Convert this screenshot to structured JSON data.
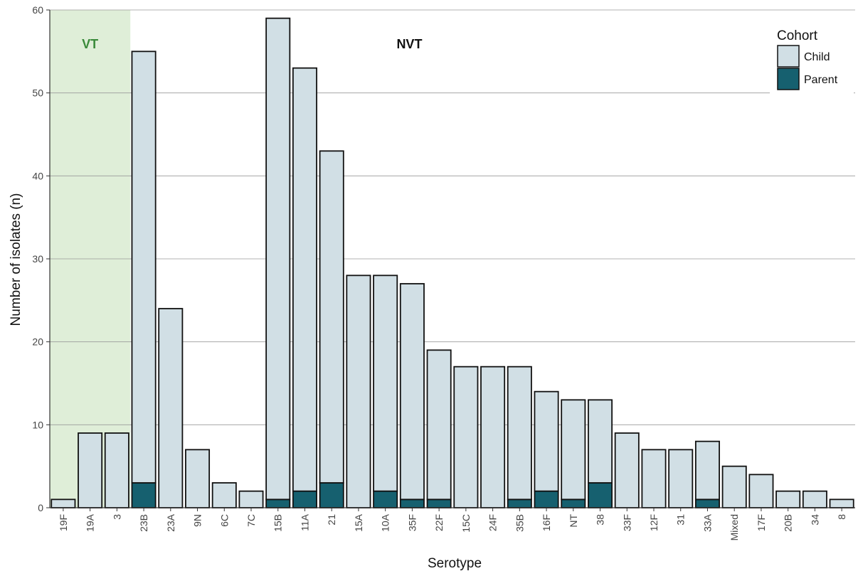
{
  "chart_data": {
    "type": "bar",
    "stacked": true,
    "xlabel": "Serotype",
    "ylabel": "Number of isolates (n)",
    "ylim": [
      0,
      60
    ],
    "yticks": [
      0,
      10,
      20,
      30,
      40,
      50,
      60
    ],
    "grid": "horizontal",
    "categories": [
      "19F",
      "19A",
      "3",
      "23B",
      "23A",
      "9N",
      "6C",
      "7C",
      "15B",
      "11A",
      "21",
      "15A",
      "10A",
      "35F",
      "22F",
      "15C",
      "24F",
      "35B",
      "16F",
      "NT",
      "38",
      "33F",
      "12F",
      "31",
      "33A",
      "Mixed",
      "17F",
      "20B",
      "34",
      "8"
    ],
    "series": [
      {
        "name": "Parent",
        "color": "#16606f",
        "values": [
          0,
          0,
          0,
          3,
          0,
          0,
          0,
          0,
          1,
          2,
          3,
          0,
          2,
          1,
          1,
          0,
          0,
          1,
          2,
          1,
          3,
          0,
          0,
          0,
          1,
          0,
          0,
          0,
          0,
          0
        ]
      },
      {
        "name": "Child",
        "color": "#d1dfe5",
        "values": [
          1,
          9,
          9,
          52,
          24,
          7,
          3,
          2,
          58,
          51,
          40,
          28,
          26,
          26,
          18,
          17,
          17,
          16,
          12,
          12,
          10,
          9,
          7,
          7,
          7,
          5,
          4,
          2,
          2,
          1
        ]
      }
    ],
    "regions": [
      {
        "label": "VT",
        "from": "19F",
        "to": "3",
        "fill": "#dfeed8",
        "text_color": "#3a8a3a"
      },
      {
        "label": "NVT",
        "from": "23B",
        "to": "8",
        "fill": "none",
        "text_color": "#111111"
      }
    ],
    "legend": {
      "title": "Cohort",
      "placement": "top-right",
      "entries": [
        {
          "label": "Child",
          "color": "#d1dfe5"
        },
        {
          "label": "Parent",
          "color": "#16606f"
        }
      ]
    }
  }
}
